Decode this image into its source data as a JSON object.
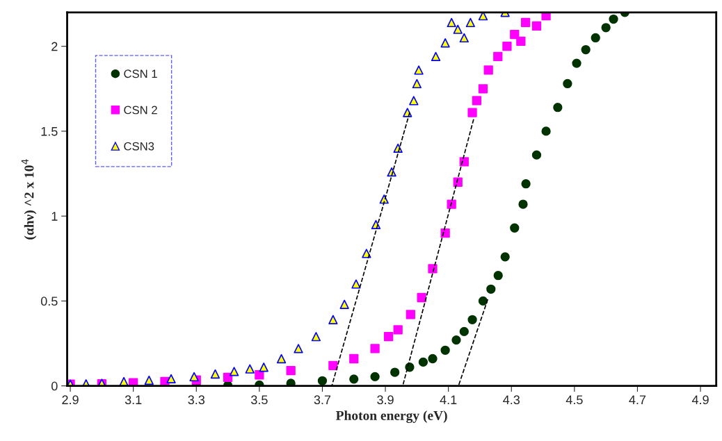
{
  "chart_data": {
    "type": "scatter",
    "xlabel": "Photon energy (eV)",
    "ylabel": "(αhν) ^2 x 10$^{4}$",
    "xlim": [
      2.89,
      4.95
    ],
    "ylim": [
      0,
      2.2
    ],
    "xticks": [
      2.9,
      3.1,
      3.3,
      3.5,
      3.7,
      3.9,
      4.1,
      4.3,
      4.5,
      4.7,
      4.9
    ],
    "yticks": [
      0,
      0.5,
      1,
      1.5,
      2
    ],
    "grid": false,
    "legend": "top left",
    "series": [
      {
        "name": "CSN 1",
        "color": "#003300",
        "marker": "circle",
        "x": [
          3.3,
          3.4,
          3.5,
          3.6,
          3.7,
          3.8,
          3.867,
          3.93,
          3.977,
          4.02,
          4.05,
          4.09,
          4.125,
          4.15,
          4.176,
          4.21,
          4.235,
          4.258,
          4.28,
          4.31,
          4.337,
          4.346,
          4.38,
          4.41,
          4.447,
          4.478,
          4.507,
          4.536,
          4.567,
          4.6,
          4.624,
          4.66
        ],
        "values": [
          0.0,
          0.003,
          0.005,
          0.015,
          0.03,
          0.04,
          0.054,
          0.08,
          0.11,
          0.14,
          0.16,
          0.21,
          0.27,
          0.32,
          0.39,
          0.5,
          0.57,
          0.65,
          0.76,
          0.93,
          1.07,
          1.19,
          1.36,
          1.5,
          1.64,
          1.78,
          1.9,
          1.98,
          2.05,
          2.11,
          2.16,
          2.2
        ]
      },
      {
        "name": "CSN 2",
        "color": "#ff00ff",
        "marker": "square",
        "x": [
          2.9,
          3.0,
          3.1,
          3.2,
          3.3,
          3.4,
          3.5,
          3.6,
          3.734,
          3.8,
          3.867,
          3.91,
          3.94,
          3.98,
          4.015,
          4.05,
          4.09,
          4.11,
          4.13,
          4.15,
          4.176,
          4.19,
          4.21,
          4.227,
          4.257,
          4.286,
          4.31,
          4.33,
          4.345,
          4.38,
          4.41
        ],
        "values": [
          0.01,
          0.012,
          0.018,
          0.025,
          0.035,
          0.05,
          0.065,
          0.09,
          0.12,
          0.16,
          0.22,
          0.29,
          0.33,
          0.42,
          0.52,
          0.69,
          0.9,
          1.07,
          1.2,
          1.32,
          1.61,
          1.68,
          1.75,
          1.86,
          1.94,
          2.0,
          2.07,
          2.03,
          2.14,
          2.12,
          2.18
        ]
      },
      {
        "name": "CSN3",
        "color": "#ffff00",
        "marker": "triangle",
        "x": [
          2.9,
          2.95,
          3.0,
          3.07,
          3.15,
          3.22,
          3.293,
          3.36,
          3.42,
          3.47,
          3.514,
          3.57,
          3.624,
          3.68,
          3.734,
          3.77,
          3.807,
          3.84,
          3.87,
          3.896,
          3.92,
          3.94,
          3.97,
          3.99,
          4.0,
          4.006,
          4.06,
          4.09,
          4.11,
          4.13,
          4.15,
          4.17,
          4.21,
          4.28
        ],
        "values": [
          0.01,
          0.012,
          0.015,
          0.025,
          0.033,
          0.042,
          0.054,
          0.07,
          0.085,
          0.1,
          0.11,
          0.16,
          0.22,
          0.29,
          0.39,
          0.48,
          0.6,
          0.78,
          0.95,
          1.1,
          1.26,
          1.4,
          1.61,
          1.68,
          1.78,
          1.86,
          1.94,
          2.02,
          2.14,
          2.1,
          2.05,
          2.14,
          2.18,
          2.2
        ]
      },
      {
        "type": "line",
        "color": "#000000",
        "line_style": "dashed",
        "x": [
          3.977,
          3.73
        ],
        "values": [
          1.61,
          0
        ]
      },
      {
        "type": "line",
        "color": "#000000",
        "line_style": "dashed",
        "x": [
          4.18,
          3.955
        ],
        "values": [
          1.57,
          0
        ]
      },
      {
        "type": "line",
        "color": "#000000",
        "line_style": "dashed",
        "x": [
          4.225,
          4.132
        ],
        "values": [
          0.51,
          0
        ]
      }
    ]
  }
}
